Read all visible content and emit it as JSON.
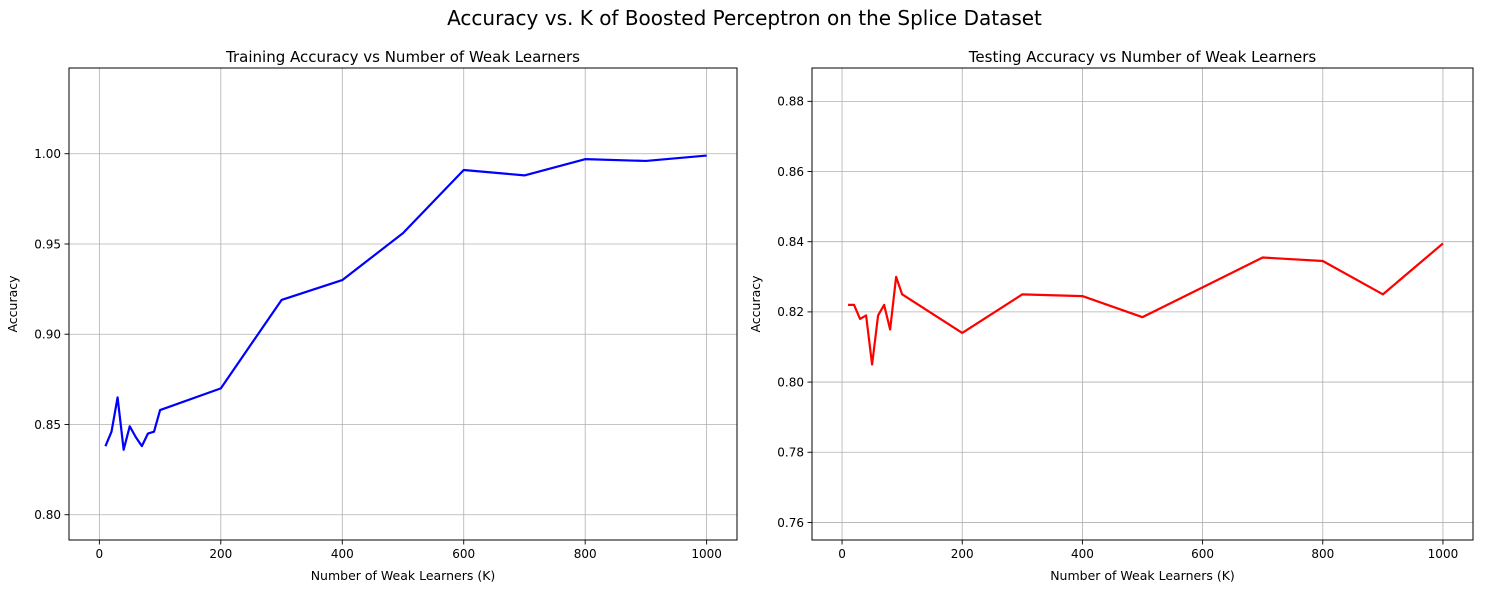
{
  "figure": {
    "title": "Accuracy vs. K of Boosted Perceptron on the Splice Dataset"
  },
  "chart_data": [
    {
      "type": "line",
      "title": "Training Accuracy vs Number of Weak Learners",
      "xlabel": "Number of Weak Learners (K)",
      "ylabel": "Accuracy",
      "xlim": [
        -50,
        1050
      ],
      "ylim": [
        0.786,
        1.0475
      ],
      "xticks": [
        0,
        200,
        400,
        600,
        800,
        1000
      ],
      "yticks": [
        0.8,
        0.85,
        0.9,
        0.95,
        1.0
      ],
      "ytick_decimals": 2,
      "grid": true,
      "series": [
        {
          "color": "#0000ff",
          "x": [
            10,
            20,
            30,
            40,
            50,
            60,
            70,
            80,
            90,
            100,
            200,
            300,
            400,
            500,
            600,
            700,
            800,
            900,
            1000
          ],
          "y": [
            0.838,
            0.846,
            0.865,
            0.836,
            0.849,
            0.843,
            0.838,
            0.845,
            0.846,
            0.858,
            0.87,
            0.919,
            0.93,
            0.956,
            0.991,
            0.988,
            0.997,
            0.996,
            0.999
          ]
        }
      ]
    },
    {
      "type": "line",
      "title": "Testing Accuracy vs Number of Weak Learners",
      "xlabel": "Number of Weak Learners (K)",
      "ylabel": "Accuracy",
      "xlim": [
        -50,
        1050
      ],
      "ylim": [
        0.755,
        0.8895
      ],
      "xticks": [
        0,
        200,
        400,
        600,
        800,
        1000
      ],
      "yticks": [
        0.76,
        0.78,
        0.8,
        0.82,
        0.84,
        0.86,
        0.88
      ],
      "ytick_decimals": 2,
      "grid": true,
      "series": [
        {
          "color": "#ff0000",
          "x": [
            10,
            20,
            30,
            40,
            50,
            60,
            70,
            80,
            90,
            100,
            200,
            300,
            400,
            500,
            600,
            700,
            800,
            900,
            1000
          ],
          "y": [
            0.822,
            0.822,
            0.818,
            0.819,
            0.805,
            0.819,
            0.822,
            0.815,
            0.83,
            0.825,
            0.814,
            0.825,
            0.8245,
            0.8185,
            0.827,
            0.8355,
            0.8345,
            0.825,
            0.8395
          ]
        }
      ]
    }
  ]
}
